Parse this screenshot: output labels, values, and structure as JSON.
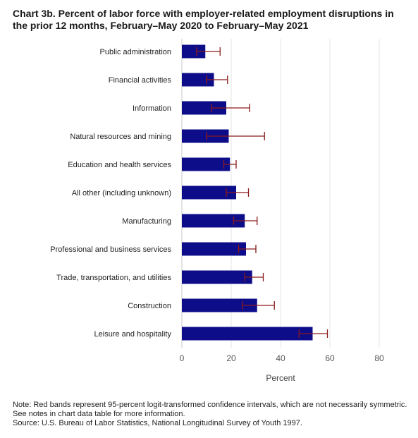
{
  "title": "Chart 3b. Percent of labor force with employer-related employment disruptions in the prior 12 months, February–May 2020 to February–May 2021",
  "notes": {
    "note": "Note: Red bands represent 95-percent logit-transformed confidence intervals, which are not necessarily symmetric. See notes in chart data table for more information.",
    "source": "Source: U.S. Bureau of Labor Statistics, National Longitudinal Survey of Youth 1997."
  },
  "colors": {
    "bar": "#0d0d8a",
    "error": "#8b1a1a",
    "grid": "#e6e6e6"
  },
  "chart_data": {
    "type": "bar",
    "orientation": "horizontal",
    "categories": [
      "Public administration",
      "Financial activities",
      "Information",
      "Natural resources and mining",
      "Education and health services",
      "All other (including unknown)",
      "Manufacturing",
      "Professional and business services",
      "Trade, transportation, and utilities",
      "Construction",
      "Leisure and hospitality"
    ],
    "values": [
      9.5,
      13,
      18,
      19,
      19.5,
      22,
      25.5,
      26,
      28.5,
      30.5,
      53
    ],
    "ci_lower": [
      6,
      10,
      12,
      10,
      17,
      18,
      21,
      23,
      25.5,
      24.5,
      47.5
    ],
    "ci_upper": [
      15.5,
      18.5,
      27.5,
      33.5,
      22,
      27,
      30.5,
      30,
      33,
      37.5,
      59
    ],
    "xlabel": "Percent",
    "ylabel": "",
    "xlim": [
      0,
      80
    ],
    "xticks": [
      0,
      20,
      40,
      60,
      80
    ],
    "grid": true
  }
}
